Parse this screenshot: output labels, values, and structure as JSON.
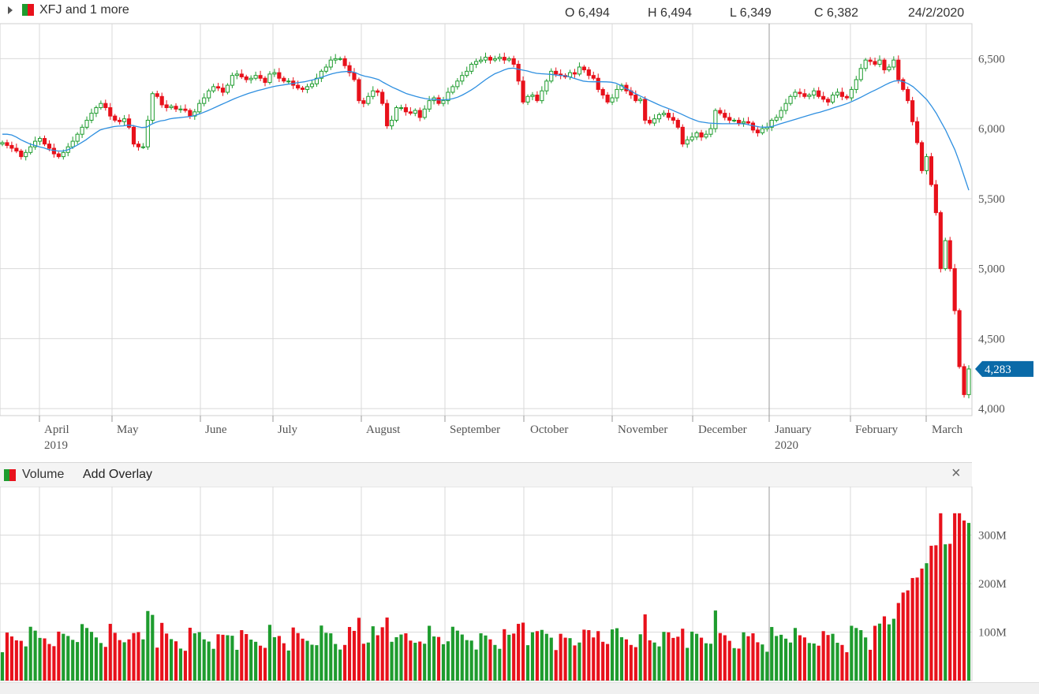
{
  "header": {
    "title": "XFJ and 1 more",
    "open": "O 6,494",
    "high": "H 6,494",
    "low": "L 6,349",
    "close": "C 6,382",
    "date": "24/2/2020"
  },
  "volume_panel": {
    "label": "Volume",
    "add_overlay": "Add Overlay",
    "close": "×"
  },
  "colors": {
    "up": "#1e9c2e",
    "down": "#e8111b",
    "ma": "#2e8fe0",
    "badge": "#0a6aa8",
    "grid": "#d9d9d9"
  },
  "chart_data": [
    {
      "type": "candlestick",
      "title": "XFJ",
      "last_price_label": "4,283",
      "y_ticks": [
        "4,000",
        "4,500",
        "5,000",
        "5,500",
        "6,000",
        "6,500"
      ],
      "ylim": [
        3950,
        6750
      ],
      "x_month_labels": [
        {
          "label": "April",
          "sub": "2019"
        },
        {
          "label": "May"
        },
        {
          "label": "June"
        },
        {
          "label": "July"
        },
        {
          "label": "August"
        },
        {
          "label": "September"
        },
        {
          "label": "October"
        },
        {
          "label": "November"
        },
        {
          "label": "December"
        },
        {
          "label": "January",
          "sub": "2020"
        },
        {
          "label": "February"
        },
        {
          "label": "March"
        }
      ],
      "close_series": [
        5900,
        5880,
        5860,
        5840,
        5800,
        5830,
        5870,
        5910,
        5930,
        5890,
        5860,
        5820,
        5800,
        5830,
        5870,
        5910,
        5960,
        6010,
        6060,
        6110,
        6150,
        6180,
        6150,
        6090,
        6060,
        6050,
        6070,
        6010,
        5890,
        5870,
        5870,
        6060,
        6250,
        6230,
        6170,
        6150,
        6160,
        6140,
        6140,
        6130,
        6090,
        6120,
        6180,
        6220,
        6270,
        6300,
        6290,
        6260,
        6310,
        6380,
        6390,
        6370,
        6350,
        6360,
        6380,
        6360,
        6330,
        6390,
        6400,
        6360,
        6340,
        6340,
        6310,
        6290,
        6280,
        6300,
        6320,
        6360,
        6410,
        6440,
        6490,
        6500,
        6500,
        6450,
        6400,
        6350,
        6200,
        6180,
        6230,
        6270,
        6260,
        6180,
        6020,
        6060,
        6150,
        6150,
        6120,
        6110,
        6130,
        6080,
        6140,
        6200,
        6220,
        6180,
        6200,
        6260,
        6300,
        6340,
        6380,
        6410,
        6460,
        6480,
        6490,
        6510,
        6490,
        6500,
        6510,
        6490,
        6500,
        6460,
        6340,
        6190,
        6230,
        6240,
        6200,
        6270,
        6340,
        6410,
        6390,
        6380,
        6370,
        6400,
        6390,
        6440,
        6420,
        6380,
        6360,
        6280,
        6240,
        6190,
        6220,
        6280,
        6310,
        6270,
        6240,
        6200,
        6210,
        6060,
        6040,
        6070,
        6100,
        6110,
        6080,
        6060,
        6010,
        5890,
        5920,
        5940,
        5970,
        5940,
        5960,
        6000,
        6130,
        6110,
        6080,
        6060,
        6060,
        6040,
        6050,
        6040,
        5990,
        5970,
        6000,
        6010,
        6060,
        6080,
        6130,
        6180,
        6230,
        6260,
        6250,
        6230,
        6240,
        6270,
        6230,
        6210,
        6190,
        6240,
        6260,
        6230,
        6220,
        6280,
        6350,
        6430,
        6490,
        6480,
        6460,
        6490,
        6420,
        6440,
        6490,
        6350,
        6280,
        6200,
        6050,
        5900,
        5700,
        5800,
        5600,
        5400,
        5000,
        5200,
        5000,
        4700,
        4300,
        4100,
        4283
      ],
      "ma_series": [
        5960,
        5960,
        5955,
        5940,
        5920,
        5905,
        5890,
        5880,
        5870,
        5862,
        5850,
        5845,
        5840,
        5840,
        5848,
        5862,
        5880,
        5900,
        5920,
        5945,
        5968,
        5990,
        6000,
        6008,
        6015,
        6018,
        6020,
        6025,
        6022,
        6015,
        6008,
        6010,
        6030,
        6045,
        6055,
        6060,
        6070,
        6075,
        6078,
        6082,
        6085,
        6090,
        6100,
        6112,
        6125,
        6140,
        6155,
        6170,
        6185,
        6200,
        6215,
        6228,
        6240,
        6252,
        6262,
        6272,
        6280,
        6290,
        6298,
        6305,
        6310,
        6315,
        6320,
        6325,
        6330,
        6335,
        6342,
        6350,
        6360,
        6370,
        6382,
        6392,
        6400,
        6405,
        6408,
        6408,
        6400,
        6385,
        6375,
        6368,
        6360,
        6350,
        6330,
        6312,
        6295,
        6280,
        6265,
        6250,
        6240,
        6230,
        6222,
        6215,
        6210,
        6208,
        6206,
        6206,
        6208,
        6215,
        6225,
        6240,
        6258,
        6278,
        6300,
        6325,
        6350,
        6372,
        6392,
        6405,
        6420,
        6430,
        6432,
        6425,
        6418,
        6412,
        6402,
        6395,
        6392,
        6390,
        6388,
        6384,
        6380,
        6378,
        6370,
        6360,
        6350,
        6340,
        6336,
        6335,
        6335,
        6335,
        6334,
        6332,
        6325,
        6310,
        6290,
        6275,
        6255,
        6238,
        6222,
        6205,
        6190,
        6175,
        6160,
        6148,
        6135,
        6120,
        6106,
        6090,
        6075,
        6062,
        6050,
        6045,
        6040,
        6038,
        6036,
        6035,
        6035,
        6035,
        6035,
        6035,
        6032,
        6025,
        6018,
        6012,
        6010,
        6012,
        6018,
        6030,
        6040,
        6050,
        6060,
        6070,
        6080,
        6090,
        6100,
        6110,
        6118,
        6128,
        6138,
        6150,
        6160,
        6170,
        6182,
        6196,
        6212,
        6228,
        6245,
        6262,
        6278,
        6295,
        6312,
        6328,
        6340,
        6343,
        6335,
        6320,
        6300,
        6270,
        6238,
        6205,
        6160,
        6110,
        6050,
        5990,
        5920,
        5850,
        5760,
        5660,
        5560
      ]
    },
    {
      "type": "bar",
      "title": "Volume",
      "y_ticks": [
        "100M",
        "200M",
        "300M"
      ],
      "ylim": [
        0,
        400
      ],
      "unit": "M"
    }
  ]
}
